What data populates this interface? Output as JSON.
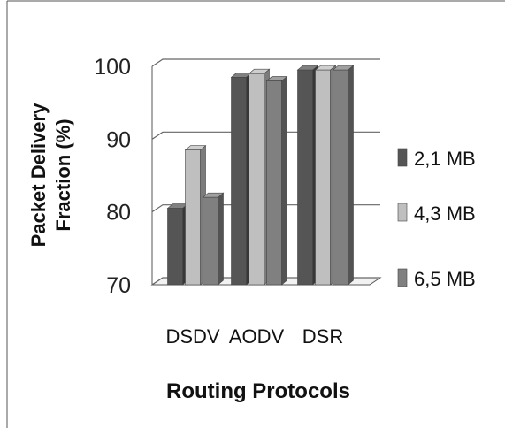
{
  "chart_data": {
    "type": "bar",
    "style": "3d-clustered-column",
    "categories": [
      "DSDV",
      "AODV",
      "DSR"
    ],
    "series": [
      {
        "name": "2,1 MB",
        "color": "#555555",
        "values": [
          80.5,
          98.5,
          99.5
        ]
      },
      {
        "name": "4,3 MB",
        "color": "#bfbfbf",
        "values": [
          88.5,
          99.0,
          99.5
        ]
      },
      {
        "name": "6,5 MB",
        "color": "#808080",
        "values": [
          82.0,
          98.0,
          99.5
        ]
      }
    ],
    "y_ticks": [
      "70",
      "80",
      "90",
      "100"
    ],
    "ylim": [
      70,
      100
    ],
    "xlabel": "Routing Protocols",
    "ylabel_lines": [
      "Packet Delivery",
      "Fraction (%)"
    ],
    "grid": true,
    "legend_position": "right"
  }
}
